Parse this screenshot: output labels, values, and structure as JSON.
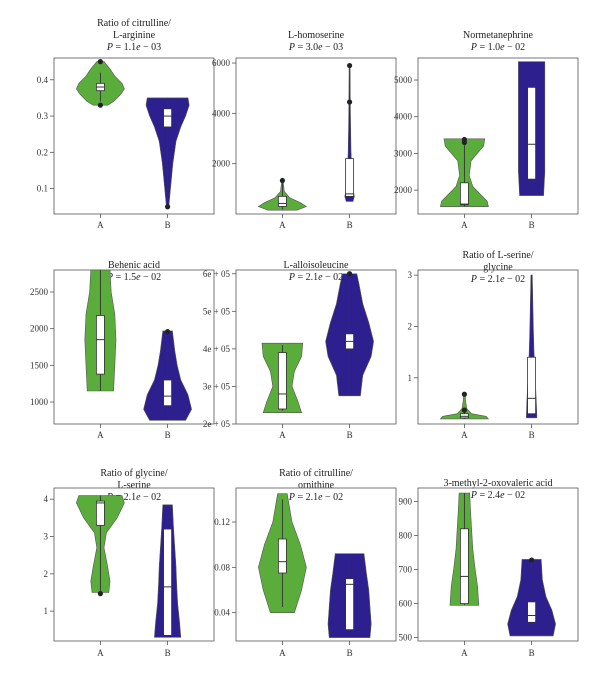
{
  "colors": {
    "A": "#5aad3a",
    "B": "#2e1f8f",
    "outlier": "#222222",
    "box": "#ffffff",
    "box_stroke": "#333333"
  },
  "chart_data": [
    {
      "type": "violin",
      "title_lines": [
        "Ratio of citrulline/",
        "L-arginine"
      ],
      "pvalue": "P = 1.1e − 03",
      "categories": [
        "A",
        "B"
      ],
      "ylim": [
        0.03,
        0.46
      ],
      "yticks": [
        0.1,
        0.2,
        0.3,
        0.4
      ],
      "yticklabels": [
        "0.1",
        "0.2",
        "0.3",
        "0.4"
      ],
      "groups": [
        {
          "name": "A",
          "min": 0.33,
          "max": 0.45,
          "q1": 0.37,
          "median": 0.38,
          "q3": 0.39,
          "wlo": 0.34,
          "whi": 0.42,
          "outliers": [
            0.33,
            0.45
          ],
          "density": [
            [
              0.33,
              0.3
            ],
            [
              0.34,
              0.55
            ],
            [
              0.36,
              0.85
            ],
            [
              0.375,
              1.0
            ],
            [
              0.39,
              0.9
            ],
            [
              0.41,
              0.6
            ],
            [
              0.43,
              0.4
            ],
            [
              0.45,
              0.15
            ]
          ]
        },
        {
          "name": "B",
          "min": 0.05,
          "max": 0.35,
          "q1": 0.27,
          "median": 0.3,
          "q3": 0.32,
          "wlo": 0.06,
          "whi": 0.35,
          "outliers": [
            0.05
          ],
          "density": [
            [
              0.05,
              0.05
            ],
            [
              0.1,
              0.12
            ],
            [
              0.17,
              0.22
            ],
            [
              0.23,
              0.35
            ],
            [
              0.27,
              0.55
            ],
            [
              0.3,
              0.75
            ],
            [
              0.33,
              0.9
            ],
            [
              0.35,
              0.85
            ]
          ]
        }
      ]
    },
    {
      "type": "violin",
      "title_lines": [
        "L-homoserine"
      ],
      "pvalue": "P = 3.0e − 03",
      "categories": [
        "A",
        "B"
      ],
      "ylim": [
        0,
        6200
      ],
      "yticks": [
        2000,
        4000,
        6000
      ],
      "yticklabels": [
        "2000",
        "4000",
        "6000"
      ],
      "groups": [
        {
          "name": "A",
          "min": 150,
          "max": 1350,
          "q1": 300,
          "median": 420,
          "q3": 700,
          "wlo": 180,
          "whi": 1300,
          "outliers": [
            1330
          ],
          "density": [
            [
              150,
              0.6
            ],
            [
              300,
              1.0
            ],
            [
              450,
              0.75
            ],
            [
              650,
              0.3
            ],
            [
              900,
              0.08
            ],
            [
              1200,
              0.04
            ],
            [
              1350,
              0.02
            ]
          ]
        },
        {
          "name": "B",
          "min": 500,
          "max": 5900,
          "q1": 700,
          "median": 800,
          "q3": 2200,
          "wlo": 550,
          "whi": 2200,
          "outliers": [
            4450,
            5900
          ],
          "density": [
            [
              500,
              0.14
            ],
            [
              700,
              0.2
            ],
            [
              900,
              0.16
            ],
            [
              1500,
              0.1
            ],
            [
              2500,
              0.06
            ],
            [
              3500,
              0.04
            ],
            [
              4500,
              0.03
            ],
            [
              5900,
              0.02
            ]
          ]
        }
      ]
    },
    {
      "type": "violin",
      "title_lines": [
        "Normetanephrine"
      ],
      "pvalue": "P = 1.0e − 02",
      "categories": [
        "A",
        "B"
      ],
      "ylim": [
        1350,
        5600
      ],
      "yticks": [
        2000,
        3000,
        4000,
        5000
      ],
      "yticklabels": [
        "2000",
        "3000",
        "4000",
        "5000"
      ],
      "groups": [
        {
          "name": "A",
          "min": 1550,
          "max": 3400,
          "q1": 1600,
          "median": 1620,
          "q3": 2200,
          "wlo": 1560,
          "whi": 3250,
          "outliers": [
            3300,
            3380
          ],
          "density": [
            [
              1550,
              1.0
            ],
            [
              1700,
              0.95
            ],
            [
              1900,
              0.65
            ],
            [
              2100,
              0.35
            ],
            [
              2400,
              0.2
            ],
            [
              2800,
              0.28
            ],
            [
              3200,
              0.8
            ],
            [
              3400,
              0.85
            ]
          ]
        },
        {
          "name": "B",
          "min": 1850,
          "max": 5500,
          "q1": 2300,
          "median": 3250,
          "q3": 4800,
          "wlo": 1900,
          "whi": 5500,
          "outliers": [],
          "density": [
            [
              1850,
              0.5
            ],
            [
              2500,
              0.55
            ],
            [
              3200,
              0.55
            ],
            [
              4000,
              0.55
            ],
            [
              4800,
              0.55
            ],
            [
              5500,
              0.55
            ]
          ]
        }
      ]
    },
    {
      "type": "violin",
      "title_lines": [
        "Behenic acid"
      ],
      "pvalue": "P = 1.5e − 02",
      "categories": [
        "A",
        "B"
      ],
      "ylim": [
        700,
        2800
      ],
      "yticks": [
        1000,
        1500,
        2000,
        2500
      ],
      "yticklabels": [
        "1000",
        "1500",
        "2000",
        "2500"
      ],
      "groups": [
        {
          "name": "A",
          "min": 1150,
          "max": 2800,
          "q1": 1380,
          "median": 1850,
          "q3": 2180,
          "wlo": 1150,
          "whi": 2800,
          "outliers": [],
          "density": [
            [
              1150,
              0.55
            ],
            [
              1500,
              0.6
            ],
            [
              1850,
              0.65
            ],
            [
              2200,
              0.6
            ],
            [
              2500,
              0.45
            ],
            [
              2800,
              0.4
            ]
          ]
        },
        {
          "name": "B",
          "min": 750,
          "max": 1970,
          "q1": 950,
          "median": 1080,
          "q3": 1300,
          "wlo": 780,
          "whi": 1950,
          "outliers": [
            1960
          ],
          "density": [
            [
              750,
              0.75
            ],
            [
              900,
              1.0
            ],
            [
              1100,
              0.85
            ],
            [
              1300,
              0.55
            ],
            [
              1500,
              0.4
            ],
            [
              1700,
              0.3
            ],
            [
              1970,
              0.2
            ]
          ]
        }
      ]
    },
    {
      "type": "violin",
      "title_lines": [
        "L-alloisoleucine"
      ],
      "pvalue": "P = 2.1e − 02",
      "categories": [
        "A",
        "B"
      ],
      "ylim": [
        200000,
        610000
      ],
      "yticks": [
        200000,
        300000,
        400000,
        500000,
        600000
      ],
      "yticklabels": [
        "2e + 05",
        "3e + 05",
        "4e + 05",
        "5e + 05",
        "6e + 05"
      ],
      "groups": [
        {
          "name": "A",
          "min": 230000,
          "max": 415000,
          "q1": 240000,
          "median": 280000,
          "q3": 390000,
          "wlo": 235000,
          "whi": 410000,
          "outliers": [],
          "density": [
            [
              230000,
              0.8
            ],
            [
              260000,
              0.65
            ],
            [
              300000,
              0.4
            ],
            [
              340000,
              0.5
            ],
            [
              380000,
              0.8
            ],
            [
              415000,
              0.85
            ]
          ]
        },
        {
          "name": "B",
          "min": 275000,
          "max": 600000,
          "q1": 400000,
          "median": 420000,
          "q3": 440000,
          "wlo": 280000,
          "whi": 595000,
          "outliers": [
            600000
          ],
          "density": [
            [
              275000,
              0.45
            ],
            [
              330000,
              0.55
            ],
            [
              380000,
              0.9
            ],
            [
              420000,
              1.0
            ],
            [
              470000,
              0.8
            ],
            [
              520000,
              0.55
            ],
            [
              570000,
              0.4
            ],
            [
              600000,
              0.3
            ]
          ]
        }
      ]
    },
    {
      "type": "violin",
      "title_lines": [
        "Ratio of L-serine/",
        "glycine"
      ],
      "pvalue": "P = 2.1e − 02",
      "categories": [
        "A",
        "B"
      ],
      "ylim": [
        0.1,
        3.1
      ],
      "yticks": [
        1,
        2,
        3
      ],
      "yticklabels": [
        "1",
        "2",
        "3"
      ],
      "groups": [
        {
          "name": "A",
          "min": 0.2,
          "max": 0.68,
          "q1": 0.22,
          "median": 0.25,
          "q3": 0.3,
          "wlo": 0.2,
          "whi": 0.4,
          "outliers": [
            0.37,
            0.68
          ],
          "density": [
            [
              0.2,
              1.0
            ],
            [
              0.25,
              0.9
            ],
            [
              0.3,
              0.3
            ],
            [
              0.4,
              0.1
            ],
            [
              0.55,
              0.05
            ],
            [
              0.68,
              0.03
            ]
          ]
        },
        {
          "name": "B",
          "min": 0.22,
          "max": 3.0,
          "q1": 0.3,
          "median": 0.6,
          "q3": 1.4,
          "wlo": 0.23,
          "whi": 3.0,
          "outliers": [],
          "density": [
            [
              0.22,
              0.22
            ],
            [
              0.5,
              0.2
            ],
            [
              1.0,
              0.15
            ],
            [
              1.5,
              0.1
            ],
            [
              2.0,
              0.07
            ],
            [
              2.5,
              0.05
            ],
            [
              3.0,
              0.03
            ]
          ]
        }
      ]
    },
    {
      "type": "violin",
      "title_lines": [
        "Ratio of glycine/",
        "L-serine"
      ],
      "pvalue": "P = 2.1e − 02",
      "categories": [
        "A",
        "B"
      ],
      "ylim": [
        0.2,
        4.3
      ],
      "yticks": [
        1,
        2,
        3,
        4
      ],
      "yticklabels": [
        "1",
        "2",
        "3",
        "4"
      ],
      "groups": [
        {
          "name": "A",
          "min": 1.5,
          "max": 4.1,
          "q1": 3.3,
          "median": 3.9,
          "q3": 3.95,
          "wlo": 1.5,
          "whi": 4.1,
          "outliers": [
            1.47
          ],
          "density": [
            [
              1.5,
              0.35
            ],
            [
              1.8,
              0.4
            ],
            [
              2.2,
              0.3
            ],
            [
              2.7,
              0.15
            ],
            [
              3.1,
              0.25
            ],
            [
              3.5,
              0.7
            ],
            [
              3.9,
              1.0
            ],
            [
              4.1,
              0.9
            ]
          ]
        },
        {
          "name": "B",
          "min": 0.3,
          "max": 3.85,
          "q1": 0.35,
          "median": 1.65,
          "q3": 3.2,
          "wlo": 0.3,
          "whi": 3.85,
          "outliers": [],
          "density": [
            [
              0.3,
              0.55
            ],
            [
              0.7,
              0.5
            ],
            [
              1.2,
              0.42
            ],
            [
              1.7,
              0.38
            ],
            [
              2.2,
              0.35
            ],
            [
              2.7,
              0.3
            ],
            [
              3.2,
              0.25
            ],
            [
              3.85,
              0.2
            ]
          ]
        }
      ]
    },
    {
      "type": "violin",
      "title_lines": [
        "Ratio of citrulline/",
        "ornithine"
      ],
      "pvalue": "P = 2.1e − 02",
      "categories": [
        "A",
        "B"
      ],
      "ylim": [
        0.015,
        0.15
      ],
      "yticks": [
        0.04,
        0.08,
        0.12
      ],
      "yticklabels": [
        "0.04",
        "0.08",
        "0.12"
      ],
      "groups": [
        {
          "name": "A",
          "min": 0.04,
          "max": 0.145,
          "q1": 0.075,
          "median": 0.085,
          "q3": 0.105,
          "wlo": 0.045,
          "whi": 0.14,
          "outliers": [],
          "density": [
            [
              0.04,
              0.5
            ],
            [
              0.06,
              0.8
            ],
            [
              0.08,
              1.0
            ],
            [
              0.1,
              0.75
            ],
            [
              0.12,
              0.4
            ],
            [
              0.145,
              0.2
            ]
          ]
        },
        {
          "name": "B",
          "min": 0.018,
          "max": 0.092,
          "q1": 0.025,
          "median": 0.065,
          "q3": 0.07,
          "wlo": 0.02,
          "whi": 0.09,
          "outliers": [],
          "density": [
            [
              0.018,
              0.85
            ],
            [
              0.03,
              0.9
            ],
            [
              0.045,
              0.85
            ],
            [
              0.06,
              0.8
            ],
            [
              0.075,
              0.7
            ],
            [
              0.092,
              0.6
            ]
          ]
        }
      ]
    },
    {
      "type": "violin",
      "title_lines": [
        "3-methyl-2-oxovaleric acid"
      ],
      "pvalue": "P = 2.4e − 02",
      "categories": [
        "A",
        "B"
      ],
      "ylim": [
        490,
        940
      ],
      "yticks": [
        500,
        600,
        700,
        800,
        900
      ],
      "yticklabels": [
        "500",
        "600",
        "700",
        "800",
        "900"
      ],
      "groups": [
        {
          "name": "A",
          "min": 595,
          "max": 925,
          "q1": 600,
          "median": 680,
          "q3": 820,
          "wlo": 595,
          "whi": 925,
          "outliers": [],
          "density": [
            [
              595,
              0.6
            ],
            [
              650,
              0.55
            ],
            [
              700,
              0.45
            ],
            [
              760,
              0.35
            ],
            [
              820,
              0.3
            ],
            [
              880,
              0.25
            ],
            [
              925,
              0.22
            ]
          ]
        },
        {
          "name": "B",
          "min": 505,
          "max": 730,
          "q1": 545,
          "median": 565,
          "q3": 605,
          "wlo": 510,
          "whi": 725,
          "outliers": [
            728
          ],
          "density": [
            [
              505,
              0.9
            ],
            [
              540,
              1.0
            ],
            [
              580,
              0.85
            ],
            [
              620,
              0.6
            ],
            [
              670,
              0.45
            ],
            [
              730,
              0.4
            ]
          ]
        }
      ]
    }
  ]
}
